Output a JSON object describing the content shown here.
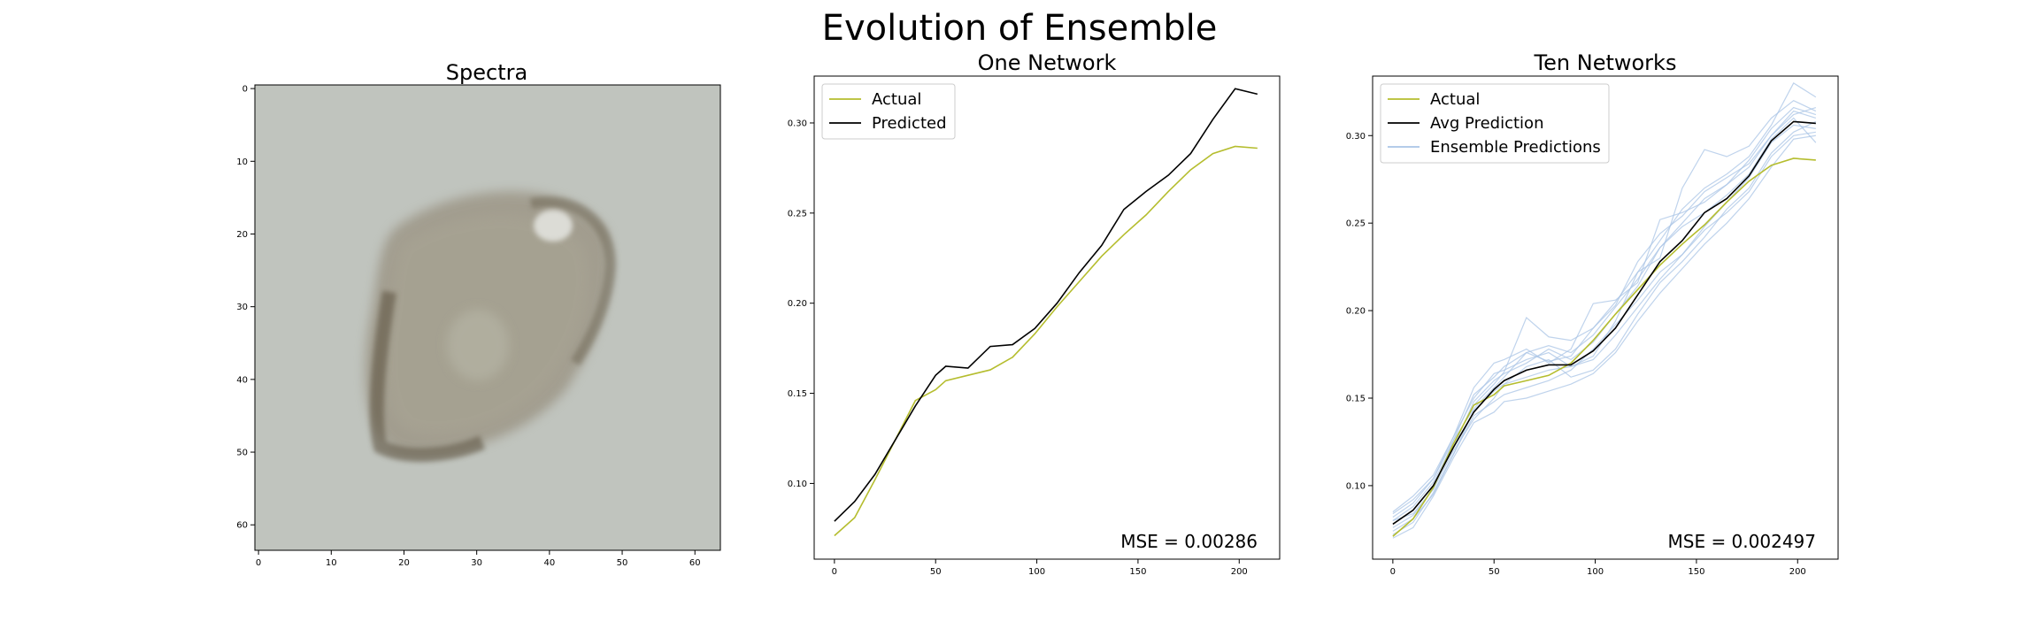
{
  "figure": {
    "title": "Evolution of Ensemble"
  },
  "spectra": {
    "title": "Spectra",
    "x_ticks": [
      "0",
      "10",
      "20",
      "30",
      "40",
      "50",
      "60"
    ],
    "y_ticks": [
      "0",
      "10",
      "20",
      "30",
      "40",
      "50",
      "60"
    ],
    "image_size": 64,
    "background_color": "#c0c4be",
    "blob_color": "#7a7060",
    "description_visible": false
  },
  "chart_data": [
    {
      "type": "line",
      "title": "One Network",
      "xlim": [
        -10,
        220
      ],
      "ylim": [
        0.058,
        0.326
      ],
      "x_ticks": [
        0,
        50,
        100,
        150,
        200
      ],
      "y_ticks": [
        0.1,
        0.15,
        0.2,
        0.25,
        0.3
      ],
      "legend_position": "top-left",
      "x": [
        0,
        10,
        20,
        30,
        40,
        50,
        55,
        66,
        77,
        88,
        99,
        110,
        121,
        132,
        143,
        154,
        165,
        176,
        187,
        198,
        209
      ],
      "series": [
        {
          "name": "Actual",
          "color": "#b5bd2e",
          "values": [
            0.071,
            0.081,
            0.102,
            0.124,
            0.146,
            0.152,
            0.157,
            0.16,
            0.163,
            0.17,
            0.183,
            0.198,
            0.212,
            0.226,
            0.238,
            0.249,
            0.262,
            0.274,
            0.283,
            0.287,
            0.286
          ]
        },
        {
          "name": "Predicted",
          "color": "#000000",
          "values": [
            0.079,
            0.09,
            0.105,
            0.124,
            0.143,
            0.16,
            0.165,
            0.164,
            0.176,
            0.177,
            0.186,
            0.2,
            0.217,
            0.232,
            0.252,
            0.262,
            0.271,
            0.283,
            0.302,
            0.319,
            0.316
          ]
        }
      ],
      "annotation": "MSE = 0.00286"
    },
    {
      "type": "line",
      "title": "Ten Networks",
      "xlim": [
        -10,
        220
      ],
      "ylim": [
        0.058,
        0.334
      ],
      "x_ticks": [
        0,
        50,
        100,
        150,
        200
      ],
      "y_ticks": [
        0.1,
        0.15,
        0.2,
        0.25,
        0.3
      ],
      "legend_position": "top-left",
      "x": [
        0,
        10,
        20,
        30,
        40,
        50,
        55,
        66,
        77,
        88,
        99,
        110,
        121,
        132,
        143,
        154,
        165,
        176,
        187,
        198,
        209
      ],
      "series": [
        {
          "name": "Actual",
          "color": "#b5bd2e",
          "values": [
            0.071,
            0.081,
            0.099,
            0.124,
            0.146,
            0.152,
            0.157,
            0.16,
            0.163,
            0.17,
            0.183,
            0.198,
            0.212,
            0.226,
            0.238,
            0.249,
            0.262,
            0.274,
            0.283,
            0.287,
            0.286
          ]
        },
        {
          "name": "Avg Prediction",
          "color": "#000000",
          "values": [
            0.078,
            0.086,
            0.1,
            0.122,
            0.142,
            0.155,
            0.16,
            0.166,
            0.169,
            0.169,
            0.177,
            0.19,
            0.209,
            0.228,
            0.24,
            0.256,
            0.264,
            0.277,
            0.297,
            0.308,
            0.307
          ]
        },
        {
          "name": "Ensemble Predictions",
          "color": "#aac4e6",
          "values": [
            0.084,
            0.092,
            0.104,
            0.126,
            0.152,
            0.162,
            0.168,
            0.176,
            0.171,
            0.174,
            0.19,
            0.205,
            0.222,
            0.24,
            0.258,
            0.27,
            0.278,
            0.288,
            0.306,
            0.33,
            0.322
          ]
        },
        {
          "name": "",
          "color": "#aac4e6",
          "values": [
            0.072,
            0.079,
            0.096,
            0.118,
            0.14,
            0.148,
            0.152,
            0.156,
            0.16,
            0.166,
            0.178,
            0.192,
            0.206,
            0.222,
            0.232,
            0.246,
            0.256,
            0.268,
            0.288,
            0.3,
            0.302
          ]
        },
        {
          "name": "",
          "color": "#aac4e6",
          "values": [
            0.08,
            0.088,
            0.102,
            0.124,
            0.146,
            0.158,
            0.165,
            0.196,
            0.185,
            0.183,
            0.19,
            0.203,
            0.228,
            0.244,
            0.254,
            0.268,
            0.276,
            0.284,
            0.3,
            0.312,
            0.316
          ]
        },
        {
          "name": "",
          "color": "#aac4e6",
          "values": [
            0.076,
            0.083,
            0.098,
            0.12,
            0.138,
            0.15,
            0.158,
            0.162,
            0.166,
            0.168,
            0.172,
            0.186,
            0.202,
            0.218,
            0.232,
            0.248,
            0.262,
            0.276,
            0.296,
            0.306,
            0.304
          ]
        },
        {
          "name": "",
          "color": "#aac4e6",
          "values": [
            0.082,
            0.09,
            0.104,
            0.128,
            0.15,
            0.164,
            0.166,
            0.172,
            0.176,
            0.168,
            0.174,
            0.194,
            0.222,
            0.23,
            0.27,
            0.292,
            0.288,
            0.294,
            0.31,
            0.32,
            0.314
          ]
        },
        {
          "name": "",
          "color": "#aac4e6",
          "values": [
            0.074,
            0.081,
            0.095,
            0.118,
            0.143,
            0.154,
            0.158,
            0.168,
            0.172,
            0.162,
            0.166,
            0.178,
            0.198,
            0.216,
            0.228,
            0.242,
            0.258,
            0.27,
            0.29,
            0.302,
            0.308
          ]
        },
        {
          "name": "",
          "color": "#aac4e6",
          "values": [
            0.085,
            0.094,
            0.106,
            0.128,
            0.156,
            0.17,
            0.172,
            0.178,
            0.17,
            0.178,
            0.204,
            0.206,
            0.216,
            0.252,
            0.256,
            0.262,
            0.272,
            0.286,
            0.304,
            0.316,
            0.312
          ]
        },
        {
          "name": "",
          "color": "#aac4e6",
          "values": [
            0.07,
            0.076,
            0.094,
            0.116,
            0.136,
            0.142,
            0.148,
            0.15,
            0.154,
            0.158,
            0.164,
            0.176,
            0.194,
            0.21,
            0.224,
            0.238,
            0.25,
            0.264,
            0.282,
            0.298,
            0.3
          ]
        },
        {
          "name": "",
          "color": "#aac4e6",
          "values": [
            0.078,
            0.086,
            0.1,
            0.122,
            0.148,
            0.16,
            0.164,
            0.17,
            0.178,
            0.172,
            0.182,
            0.198,
            0.214,
            0.236,
            0.248,
            0.256,
            0.266,
            0.278,
            0.298,
            0.31,
            0.296
          ]
        },
        {
          "name": "",
          "color": "#aac4e6",
          "values": [
            0.08,
            0.084,
            0.098,
            0.126,
            0.144,
            0.156,
            0.162,
            0.176,
            0.18,
            0.176,
            0.186,
            0.202,
            0.218,
            0.236,
            0.25,
            0.264,
            0.272,
            0.282,
            0.3,
            0.314,
            0.31
          ]
        }
      ],
      "annotation": "MSE = 0.002497"
    }
  ]
}
